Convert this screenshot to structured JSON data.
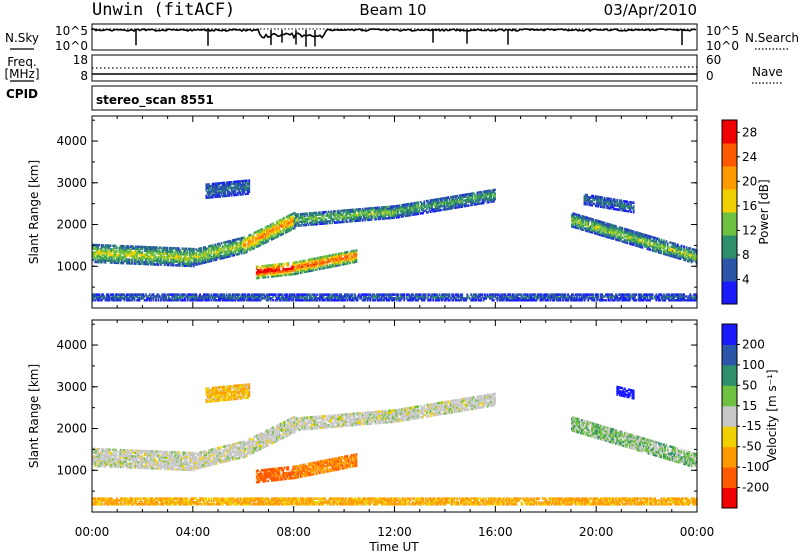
{
  "header": {
    "station": "Unwin (fitACF)",
    "beam": "Beam 10",
    "date": "03/Apr/2010"
  },
  "status_panel": {
    "nsky_label": "N.Sky",
    "nsearch_label": "N.Search",
    "noise_ticks_left": [
      "10^5",
      "10^0"
    ],
    "noise_ticks_right": [
      "10^5",
      "10^0"
    ],
    "freq_label": "Freq.",
    "freq_unit": "[MHz]",
    "freq_ticks": [
      "18",
      "8"
    ],
    "nave_label": "Nave",
    "nave_ticks": [
      "60",
      "0"
    ],
    "cpid_label": "CPID",
    "cpid_value": "stereo_scan 8551"
  },
  "chart_data": [
    {
      "type": "heatmap",
      "title": "",
      "xlabel": "Time UT",
      "ylabel": "Slant Range [km]",
      "xlim": [
        0,
        24
      ],
      "ylim": [
        0,
        4600
      ],
      "x_ticks": [
        "00:00",
        "04:00",
        "08:00",
        "12:00",
        "16:00",
        "20:00",
        "00:00"
      ],
      "y_ticks": [
        1000,
        2000,
        3000,
        4000
      ],
      "colorbar": {
        "label": "Power [dB]",
        "ticks": [
          4,
          8,
          12,
          16,
          20,
          24,
          28
        ],
        "range": [
          0,
          30
        ],
        "colors": [
          "#1a1aff",
          "#2a55a8",
          "#2f8f6a",
          "#6ec040",
          "#f0d000",
          "#ff9a00",
          "#ff5a00",
          "#f00000"
        ]
      },
      "bands": [
        {
          "t0": 0.0,
          "t1": 4.0,
          "r0": 1300,
          "r1": 1200,
          "w": 420,
          "level": 14
        },
        {
          "t0": 4.0,
          "t1": 6.0,
          "r0": 1200,
          "r1": 1500,
          "w": 380,
          "level": 14
        },
        {
          "t0": 6.0,
          "t1": 8.0,
          "r0": 1500,
          "r1": 2100,
          "w": 400,
          "level": 20
        },
        {
          "t0": 8.0,
          "t1": 12.0,
          "r0": 2100,
          "r1": 2300,
          "w": 300,
          "level": 12
        },
        {
          "t0": 12.0,
          "t1": 16.0,
          "r0": 2300,
          "r1": 2700,
          "w": 300,
          "level": 10
        },
        {
          "t0": 6.5,
          "t1": 8.0,
          "r0": 850,
          "r1": 950,
          "w": 300,
          "level": 27
        },
        {
          "t0": 8.0,
          "t1": 10.5,
          "r0": 950,
          "r1": 1250,
          "w": 300,
          "level": 22
        },
        {
          "t0": 4.5,
          "t1": 6.2,
          "r0": 2800,
          "r1": 2900,
          "w": 350,
          "level": 7
        },
        {
          "t0": 19.0,
          "t1": 24.0,
          "r0": 2100,
          "r1": 1200,
          "w": 320,
          "level": 13
        },
        {
          "t0": 19.5,
          "t1": 21.5,
          "r0": 2600,
          "r1": 2400,
          "w": 250,
          "level": 7
        },
        {
          "t0": 0.0,
          "t1": 24.0,
          "r0": 250,
          "r1": 250,
          "w": 160,
          "level": 6
        }
      ]
    },
    {
      "type": "heatmap",
      "title": "",
      "xlabel": "Time UT",
      "ylabel": "Slant Range [km]",
      "xlim": [
        0,
        24
      ],
      "ylim": [
        0,
        4600
      ],
      "x_ticks": [
        "00:00",
        "04:00",
        "08:00",
        "12:00",
        "16:00",
        "20:00",
        "00:00"
      ],
      "y_ticks": [
        1000,
        2000,
        3000,
        4000
      ],
      "colorbar": {
        "label": "Velocity [m s⁻¹]",
        "ticks": [
          200,
          100,
          50,
          15,
          -15,
          -50,
          -100,
          -200
        ],
        "range": [
          -250,
          250
        ],
        "colors": [
          "#1a1aff",
          "#2a55a8",
          "#2f8f6a",
          "#6ec040",
          "#c8c8c8",
          "#f0d000",
          "#ff9a00",
          "#ff5a00",
          "#f00000"
        ]
      },
      "bands": [
        {
          "t0": 0.0,
          "t1": 4.0,
          "r0": 1300,
          "r1": 1200,
          "w": 420,
          "vel": 0
        },
        {
          "t0": 4.0,
          "t1": 6.0,
          "r0": 1200,
          "r1": 1500,
          "w": 380,
          "vel": 0
        },
        {
          "t0": 6.0,
          "t1": 8.0,
          "r0": 1500,
          "r1": 2100,
          "w": 400,
          "vel": 0
        },
        {
          "t0": 8.0,
          "t1": 12.0,
          "r0": 2100,
          "r1": 2300,
          "w": 300,
          "vel": 0
        },
        {
          "t0": 12.0,
          "t1": 16.0,
          "r0": 2300,
          "r1": 2700,
          "w": 300,
          "vel": 0
        },
        {
          "t0": 6.5,
          "t1": 8.0,
          "r0": 850,
          "r1": 950,
          "w": 300,
          "vel": -90
        },
        {
          "t0": 8.0,
          "t1": 10.5,
          "r0": 950,
          "r1": 1250,
          "w": 300,
          "vel": -70
        },
        {
          "t0": 4.5,
          "t1": 6.2,
          "r0": 2800,
          "r1": 2900,
          "w": 350,
          "vel": -30
        },
        {
          "t0": 19.0,
          "t1": 24.0,
          "r0": 2100,
          "r1": 1200,
          "w": 320,
          "vel": 20
        },
        {
          "t0": 20.8,
          "t1": 21.5,
          "r0": 2900,
          "r1": 2800,
          "w": 200,
          "vel": 220
        },
        {
          "t0": 0.0,
          "t1": 24.0,
          "r0": 250,
          "r1": 250,
          "w": 160,
          "vel": -40
        }
      ]
    }
  ]
}
